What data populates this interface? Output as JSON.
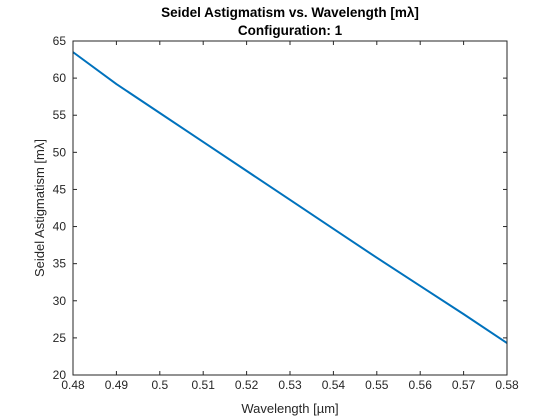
{
  "chart_data": {
    "type": "line",
    "title": "Seidel Astigmatism vs. Wavelength [mλ]",
    "subtitle": "Configuration: 1",
    "xlabel": "Wavelength [µm]",
    "ylabel": "Seidel Astigmatism [mλ]",
    "xlim": [
      0.48,
      0.58
    ],
    "ylim": [
      20,
      65
    ],
    "xticks": [
      "0.48",
      "0.49",
      "0.5",
      "0.51",
      "0.52",
      "0.53",
      "0.54",
      "0.55",
      "0.56",
      "0.57",
      "0.58"
    ],
    "yticks": [
      "20",
      "25",
      "30",
      "35",
      "40",
      "45",
      "50",
      "55",
      "60",
      "65"
    ],
    "grid": false,
    "series": [
      {
        "color": "#0072BD",
        "x": [
          0.48,
          0.49,
          0.5,
          0.51,
          0.52,
          0.53,
          0.54,
          0.55,
          0.56,
          0.57,
          0.58
        ],
        "y": [
          63.5,
          59.2,
          55.3,
          51.4,
          47.5,
          43.6,
          39.7,
          35.8,
          32.0,
          28.2,
          24.3
        ]
      }
    ]
  }
}
